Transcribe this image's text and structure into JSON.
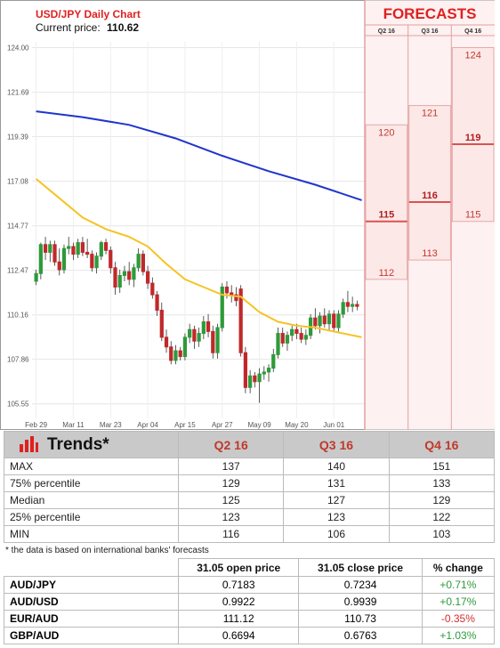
{
  "header": {
    "title": "USD/JPY Daily Chart",
    "price_label": "Current price:",
    "price_value": "110.62"
  },
  "forecast_panel": {
    "title": "FORECASTS",
    "columns": [
      "Q2 16",
      "Q3 16",
      "Q4 16"
    ]
  },
  "chart_data": {
    "type": "candlestick",
    "y_ticks": [
      "124.00",
      "121.69",
      "119.39",
      "117.08",
      "114.77",
      "112.47",
      "110.16",
      "107.86",
      "105.55"
    ],
    "x_ticks": [
      "Feb 29",
      "Mar 11",
      "Mar 23",
      "Apr 04",
      "Apr 15",
      "Apr 27",
      "May 09",
      "May 20",
      "Jun 01"
    ],
    "ylim": [
      104.8,
      124.3
    ],
    "colors": {
      "up": "#2e9a3a",
      "down": "#c0292b",
      "ma_fast": "#f6c324",
      "ma_slow": "#1f35cc",
      "forecast_bg": "#fde8e8",
      "forecast_line": "#d9534f"
    },
    "candles": [
      {
        "o": 111.9,
        "h": 112.5,
        "l": 111.7,
        "c": 112.3
      },
      {
        "o": 112.3,
        "h": 113.9,
        "l": 112.0,
        "c": 113.8
      },
      {
        "o": 113.8,
        "h": 114.2,
        "l": 113.0,
        "c": 113.4
      },
      {
        "o": 113.4,
        "h": 114.0,
        "l": 112.9,
        "c": 113.8
      },
      {
        "o": 113.8,
        "h": 114.0,
        "l": 112.7,
        "c": 112.9
      },
      {
        "o": 112.9,
        "h": 113.6,
        "l": 112.2,
        "c": 112.5
      },
      {
        "o": 112.5,
        "h": 113.8,
        "l": 112.3,
        "c": 113.6
      },
      {
        "o": 113.6,
        "h": 114.2,
        "l": 113.3,
        "c": 113.7
      },
      {
        "o": 113.7,
        "h": 113.9,
        "l": 113.0,
        "c": 113.3
      },
      {
        "o": 113.3,
        "h": 114.1,
        "l": 113.1,
        "c": 113.9
      },
      {
        "o": 113.9,
        "h": 114.2,
        "l": 113.2,
        "c": 113.4
      },
      {
        "o": 113.4,
        "h": 114.1,
        "l": 113.1,
        "c": 113.3
      },
      {
        "o": 113.3,
        "h": 113.5,
        "l": 112.4,
        "c": 112.6
      },
      {
        "o": 112.6,
        "h": 113.4,
        "l": 112.3,
        "c": 113.2
      },
      {
        "o": 113.2,
        "h": 114.0,
        "l": 113.0,
        "c": 113.9
      },
      {
        "o": 113.9,
        "h": 114.1,
        "l": 113.3,
        "c": 113.5
      },
      {
        "o": 113.5,
        "h": 113.7,
        "l": 112.3,
        "c": 112.6
      },
      {
        "o": 112.6,
        "h": 112.9,
        "l": 111.2,
        "c": 111.6
      },
      {
        "o": 111.6,
        "h": 112.5,
        "l": 111.3,
        "c": 112.2
      },
      {
        "o": 112.2,
        "h": 112.7,
        "l": 111.9,
        "c": 112.4
      },
      {
        "o": 112.4,
        "h": 112.9,
        "l": 111.7,
        "c": 112.0
      },
      {
        "o": 112.0,
        "h": 112.8,
        "l": 111.6,
        "c": 112.6
      },
      {
        "o": 112.6,
        "h": 113.6,
        "l": 112.4,
        "c": 113.3
      },
      {
        "o": 113.3,
        "h": 113.5,
        "l": 112.2,
        "c": 112.4
      },
      {
        "o": 112.4,
        "h": 112.7,
        "l": 111.5,
        "c": 111.8
      },
      {
        "o": 111.8,
        "h": 112.1,
        "l": 111.0,
        "c": 111.2
      },
      {
        "o": 111.2,
        "h": 111.4,
        "l": 110.1,
        "c": 110.4
      },
      {
        "o": 110.4,
        "h": 110.8,
        "l": 108.8,
        "c": 109.0
      },
      {
        "o": 109.0,
        "h": 109.4,
        "l": 108.2,
        "c": 108.5
      },
      {
        "o": 108.5,
        "h": 108.8,
        "l": 107.6,
        "c": 107.8
      },
      {
        "o": 107.8,
        "h": 108.6,
        "l": 107.6,
        "c": 108.3
      },
      {
        "o": 108.3,
        "h": 108.5,
        "l": 107.8,
        "c": 108.0
      },
      {
        "o": 108.0,
        "h": 109.2,
        "l": 107.8,
        "c": 109.0
      },
      {
        "o": 109.0,
        "h": 109.7,
        "l": 108.7,
        "c": 109.4
      },
      {
        "o": 109.4,
        "h": 109.6,
        "l": 108.4,
        "c": 108.8
      },
      {
        "o": 108.8,
        "h": 109.5,
        "l": 108.5,
        "c": 109.2
      },
      {
        "o": 109.2,
        "h": 110.1,
        "l": 108.9,
        "c": 109.8
      },
      {
        "o": 109.8,
        "h": 110.2,
        "l": 109.0,
        "c": 109.3
      },
      {
        "o": 109.3,
        "h": 109.6,
        "l": 107.9,
        "c": 108.2
      },
      {
        "o": 108.2,
        "h": 109.7,
        "l": 107.9,
        "c": 109.5
      },
      {
        "o": 109.5,
        "h": 111.8,
        "l": 109.3,
        "c": 111.6
      },
      {
        "o": 111.6,
        "h": 111.9,
        "l": 111.0,
        "c": 111.3
      },
      {
        "o": 111.3,
        "h": 111.7,
        "l": 110.8,
        "c": 111.2
      },
      {
        "o": 111.2,
        "h": 111.6,
        "l": 110.6,
        "c": 110.9
      },
      {
        "o": 111.5,
        "h": 111.7,
        "l": 108.0,
        "c": 108.2
      },
      {
        "o": 108.2,
        "h": 108.5,
        "l": 106.1,
        "c": 106.4
      },
      {
        "o": 106.4,
        "h": 107.3,
        "l": 106.1,
        "c": 107.0
      },
      {
        "o": 107.0,
        "h": 107.2,
        "l": 106.4,
        "c": 106.7
      },
      {
        "o": 106.7,
        "h": 107.4,
        "l": 105.6,
        "c": 107.1
      },
      {
        "o": 107.1,
        "h": 107.5,
        "l": 106.8,
        "c": 107.2
      },
      {
        "o": 107.2,
        "h": 107.6,
        "l": 106.7,
        "c": 107.4
      },
      {
        "o": 107.4,
        "h": 108.4,
        "l": 107.2,
        "c": 108.1
      },
      {
        "o": 108.1,
        "h": 109.5,
        "l": 107.9,
        "c": 109.2
      },
      {
        "o": 109.2,
        "h": 109.5,
        "l": 108.5,
        "c": 108.7
      },
      {
        "o": 108.7,
        "h": 109.3,
        "l": 108.3,
        "c": 109.1
      },
      {
        "o": 109.1,
        "h": 109.6,
        "l": 108.8,
        "c": 109.4
      },
      {
        "o": 109.4,
        "h": 109.7,
        "l": 108.9,
        "c": 109.2
      },
      {
        "o": 109.2,
        "h": 109.5,
        "l": 108.7,
        "c": 108.9
      },
      {
        "o": 108.9,
        "h": 109.4,
        "l": 108.6,
        "c": 109.1
      },
      {
        "o": 109.1,
        "h": 110.2,
        "l": 108.9,
        "c": 110.0
      },
      {
        "o": 110.0,
        "h": 110.5,
        "l": 109.4,
        "c": 109.6
      },
      {
        "o": 109.6,
        "h": 110.3,
        "l": 109.2,
        "c": 110.1
      },
      {
        "o": 110.1,
        "h": 110.5,
        "l": 109.5,
        "c": 109.7
      },
      {
        "o": 109.7,
        "h": 110.4,
        "l": 109.3,
        "c": 110.2
      },
      {
        "o": 110.2,
        "h": 110.4,
        "l": 109.3,
        "c": 109.5
      },
      {
        "o": 109.5,
        "h": 110.4,
        "l": 109.3,
        "c": 110.2
      },
      {
        "o": 110.2,
        "h": 111.0,
        "l": 110.0,
        "c": 110.8
      },
      {
        "o": 110.8,
        "h": 111.4,
        "l": 110.3,
        "c": 110.6
      },
      {
        "o": 110.6,
        "h": 111.1,
        "l": 110.3,
        "c": 110.7
      },
      {
        "o": 110.7,
        "h": 110.9,
        "l": 110.4,
        "c": 110.6
      }
    ],
    "ma_fast": [
      [
        0,
        117.2
      ],
      [
        5,
        116.2
      ],
      [
        10,
        115.2
      ],
      [
        15,
        114.6
      ],
      [
        20,
        114.2
      ],
      [
        24,
        113.7
      ],
      [
        28,
        112.8
      ],
      [
        32,
        112.0
      ],
      [
        36,
        111.6
      ],
      [
        40,
        111.2
      ],
      [
        44,
        111.1
      ],
      [
        48,
        110.3
      ],
      [
        52,
        109.8
      ],
      [
        56,
        109.6
      ],
      [
        60,
        109.5
      ],
      [
        64,
        109.3
      ],
      [
        70,
        109.0
      ]
    ],
    "ma_slow": [
      [
        0,
        120.7
      ],
      [
        10,
        120.4
      ],
      [
        20,
        120.0
      ],
      [
        30,
        119.3
      ],
      [
        40,
        118.4
      ],
      [
        50,
        117.6
      ],
      [
        60,
        116.9
      ],
      [
        70,
        116.1
      ]
    ],
    "forecasts": [
      {
        "column": "Q2 16",
        "high": 120,
        "mid": 115,
        "low": 112
      },
      {
        "column": "Q3 16",
        "high": 121,
        "mid": 116,
        "low": 113
      },
      {
        "column": "Q4 16",
        "high": 124,
        "mid": 119,
        "low": 115
      }
    ]
  },
  "trends": {
    "title": "Trends*",
    "headers": [
      "Q2 16",
      "Q3 16",
      "Q4 16"
    ],
    "rows": [
      {
        "label": "MAX",
        "values": [
          "137",
          "140",
          "151"
        ]
      },
      {
        "label": "75% percentile",
        "values": [
          "129",
          "131",
          "133"
        ]
      },
      {
        "label": "Median",
        "values": [
          "125",
          "127",
          "129"
        ]
      },
      {
        "label": "25% percentile",
        "values": [
          "123",
          "123",
          "122"
        ]
      },
      {
        "label": "MIN",
        "values": [
          "116",
          "106",
          "103"
        ]
      }
    ],
    "note": "* the data is based on international banks' forecasts"
  },
  "fx_table": {
    "headers": [
      "31.05 open price",
      "31.05 close price",
      "% change"
    ],
    "rows": [
      {
        "pair": "AUD/JPY",
        "open": "0.7183",
        "close": "0.7234",
        "change": "+0.71%",
        "dir": "pos"
      },
      {
        "pair": "AUD/USD",
        "open": "0.9922",
        "close": "0.9939",
        "change": "+0.17%",
        "dir": "pos"
      },
      {
        "pair": "EUR/AUD",
        "open": "111.12",
        "close": "110.73",
        "change": "-0.35%",
        "dir": "neg"
      },
      {
        "pair": "GBP/AUD",
        "open": "0.6694",
        "close": "0.6763",
        "change": "+1.03%",
        "dir": "pos"
      }
    ]
  }
}
